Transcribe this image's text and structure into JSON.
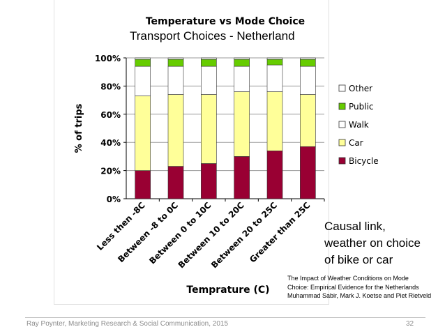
{
  "slide": {
    "overlay_title": "Transport Choices - Netherland",
    "causal_lines": [
      "Causal link,",
      "weather on choice",
      "of bike or car"
    ],
    "citation_lines": [
      "The Impact of Weather Conditions on Mode",
      "Choice: Empirical Evidence for the Netherlands",
      "Muhammad Sabir, Mark J. Koetse and Piet Rietveld"
    ],
    "footer_left": "Ray Poynter, Marketing Research & Social Communication, 2015",
    "page_number": "32"
  },
  "chart_data": {
    "type": "bar",
    "stacked": true,
    "title": "Temperature vs Mode Choice",
    "xlabel": "Temprature (C)",
    "ylabel": "% of trips",
    "ylim": [
      0,
      100
    ],
    "yticks": [
      "0%",
      "20%",
      "40%",
      "60%",
      "80%",
      "100%"
    ],
    "grid": true,
    "legend_position": "right",
    "categories": [
      "Less then -8C",
      "Between -8 to 0C",
      "Between 0 to 10C",
      "Between 10 to 20C",
      "Between 20 to 25C",
      "Greater than 25C"
    ],
    "series": [
      {
        "name": "Bicycle",
        "color": "#990033",
        "values": [
          20,
          23,
          25,
          30,
          34,
          37
        ]
      },
      {
        "name": "Car",
        "color": "#ffff99",
        "values": [
          53,
          51,
          49,
          46,
          42,
          37
        ]
      },
      {
        "name": "Walk",
        "color": "#ffffff",
        "values": [
          21,
          20,
          20,
          18,
          19,
          20
        ]
      },
      {
        "name": "Public",
        "color": "#66cc00",
        "values": [
          5,
          5,
          5,
          5,
          4,
          5
        ]
      },
      {
        "name": "Other",
        "color": "#ffffff",
        "values": [
          1,
          1,
          1,
          1,
          1,
          1
        ]
      }
    ]
  }
}
